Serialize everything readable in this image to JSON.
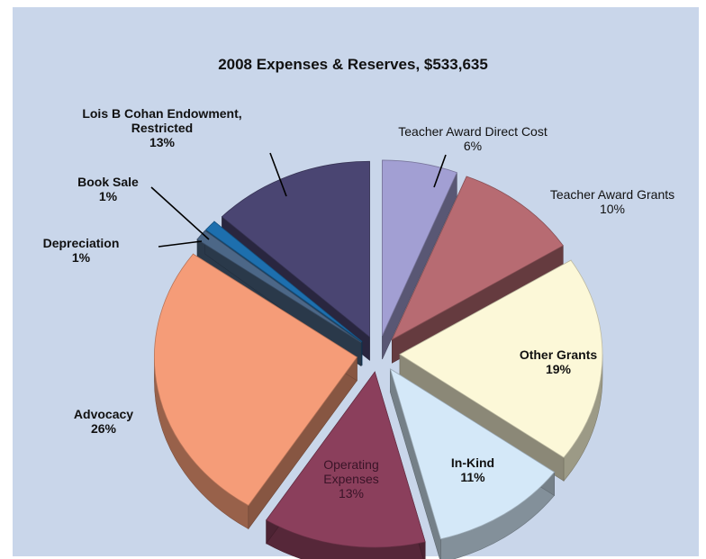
{
  "chart_data": {
    "type": "pie",
    "title": "2008 Expenses & Reserves, $533,635",
    "slices": [
      {
        "label": "Teacher Award Direct Cost",
        "pct_label": "6%",
        "value": 6,
        "color": "#a29fd3"
      },
      {
        "label": "Teacher Award Grants",
        "pct_label": "10%",
        "value": 10,
        "color": "#b76b72"
      },
      {
        "label": "Other Grants",
        "pct_label": "19%",
        "value": 19,
        "color": "#fcf8d8"
      },
      {
        "label": "In-Kind",
        "pct_label": "11%",
        "value": 11,
        "color": "#d4e8f8"
      },
      {
        "label_lines": [
          "Operating",
          "Expenses"
        ],
        "label": "Operating Expenses",
        "pct_label": "13%",
        "value": 13,
        "color": "#8b3f5c"
      },
      {
        "label": "Advocacy",
        "pct_label": "26%",
        "value": 26,
        "color": "#f59c78"
      },
      {
        "label": "Depreciation",
        "pct_label": "1%",
        "value": 1,
        "color": "#4c6787"
      },
      {
        "label": "Book Sale",
        "pct_label": "1%",
        "value": 1,
        "color": "#1d6fae"
      },
      {
        "label_lines": [
          "Lois B Cohan Endowment,",
          "Restricted"
        ],
        "label": "Lois B Cohan Endowment, Restricted",
        "pct_label": "13%",
        "value": 13,
        "color": "#4a4572"
      }
    ]
  }
}
